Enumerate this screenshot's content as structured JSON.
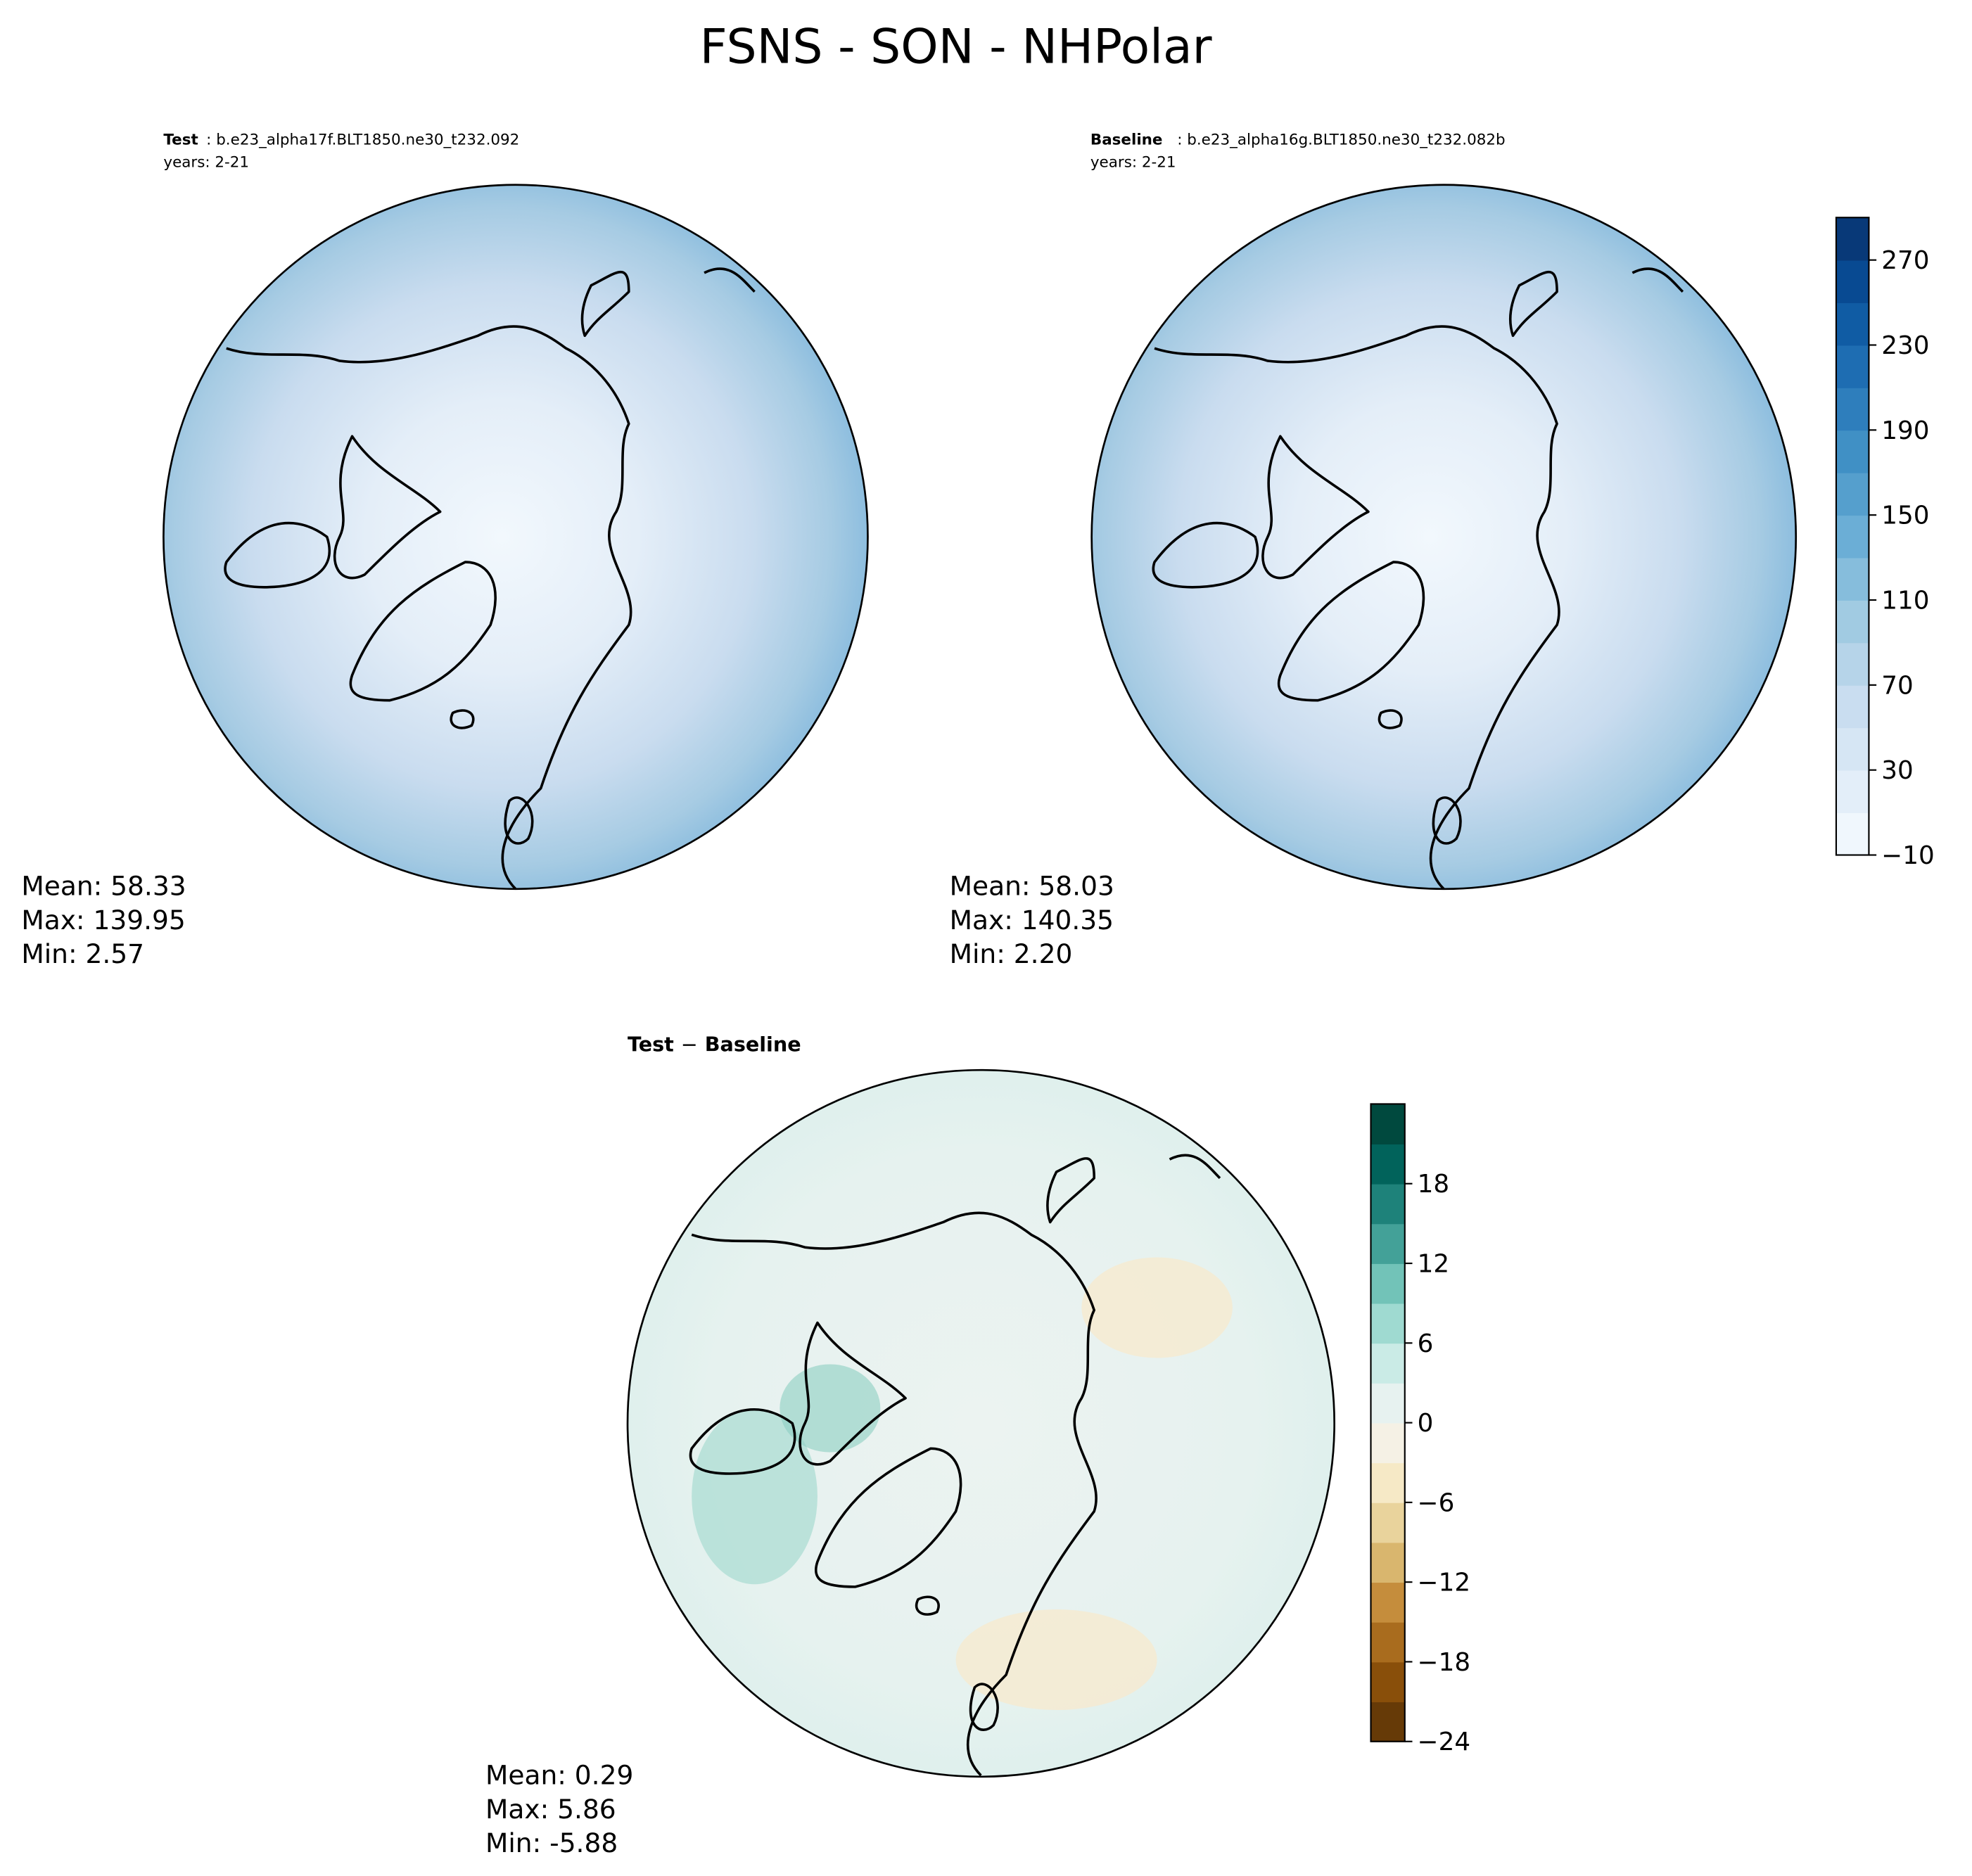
{
  "title": "FSNS - SON - NHPolar",
  "panels": [
    {
      "label": "Test",
      "name": ": b.e23_alpha17f.BLT1850.ne30_t232.092",
      "years": "years: 2-21",
      "stats": [
        "Mean: 58.33",
        "Max: 139.95",
        "Min:  2.57"
      ]
    },
    {
      "label": "Baseline",
      "name": ": b.e23_alpha16g.BLT1850.ne30_t232.082b",
      "years": "years: 2-21",
      "stats": [
        "Mean: 58.03",
        "Max: 140.35",
        "Min:  2.20"
      ]
    },
    {
      "label": "Test",
      "separator": "−",
      "label2": "Baseline",
      "stats": [
        "Mean:  0.29",
        "Max:  5.86",
        "Min: -5.88"
      ]
    }
  ],
  "colorbars": [
    {
      "ylim": [
        -10,
        290
      ],
      "yticks": [
        {
          "value": -10,
          "label": "−10"
        },
        30,
        70,
        110,
        150,
        190,
        230,
        270
      ],
      "colors": [
        "#f7fbff",
        "#deebf7",
        "#c6dbef",
        "#9ecae1",
        "#6baed6",
        "#4292c6",
        "#2171b5",
        "#08519c",
        "#08306b"
      ]
    },
    {
      "ylim": [
        -24,
        24
      ],
      "yticks": [
        {
          "value": -24,
          "label": "−24"
        },
        {
          "value": -18,
          "label": "−18"
        },
        {
          "value": -12,
          "label": "−12"
        },
        {
          "value": -6,
          "label": "−6"
        },
        0,
        6,
        12,
        18
      ],
      "colors": [
        "#543005",
        "#8c510a",
        "#bf812d",
        "#dfc27d",
        "#f6e8c3",
        "#f5f5f5",
        "#c7eae5",
        "#80cdc1",
        "#35978f",
        "#01665e",
        "#003c30"
      ]
    }
  ]
}
